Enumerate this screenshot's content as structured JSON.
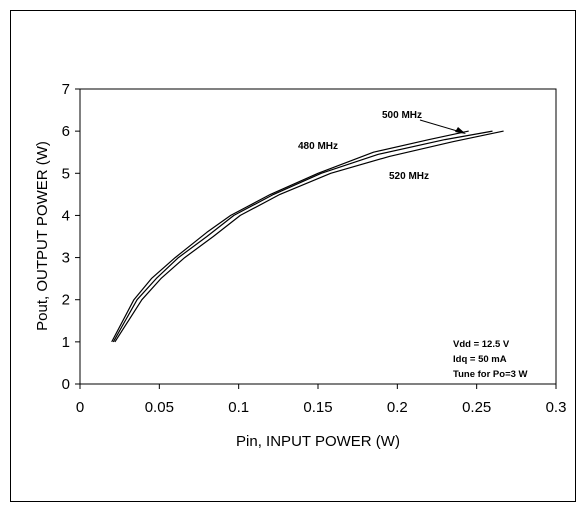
{
  "chart_data": {
    "type": "line",
    "title": "",
    "xlabel": "Pin, INPUT POWER (W)",
    "ylabel": "Pout, OUTPUT POWER (W)",
    "xlim": [
      0,
      0.3
    ],
    "ylim": [
      0,
      7
    ],
    "x_ticks": [
      "0",
      "0.05",
      "0.1",
      "0.15",
      "0.2",
      "0.25",
      "0.3"
    ],
    "y_ticks": [
      "0",
      "1",
      "2",
      "3",
      "4",
      "5",
      "6",
      "7"
    ],
    "grid": false,
    "series": [
      {
        "name": "480 MHz",
        "points": [
          [
            0.02,
            1.0
          ],
          [
            0.034,
            2.0
          ],
          [
            0.045,
            2.5
          ],
          [
            0.06,
            3.0
          ],
          [
            0.08,
            3.6
          ],
          [
            0.095,
            4.0
          ],
          [
            0.12,
            4.5
          ],
          [
            0.15,
            5.0
          ],
          [
            0.185,
            5.5
          ],
          [
            0.22,
            5.8
          ],
          [
            0.245,
            6.0
          ]
        ]
      },
      {
        "name": "500 MHz",
        "points": [
          [
            0.021,
            1.0
          ],
          [
            0.036,
            2.0
          ],
          [
            0.048,
            2.5
          ],
          [
            0.062,
            3.0
          ],
          [
            0.08,
            3.5
          ],
          [
            0.097,
            4.0
          ],
          [
            0.122,
            4.5
          ],
          [
            0.152,
            5.0
          ],
          [
            0.188,
            5.45
          ],
          [
            0.23,
            5.8
          ],
          [
            0.26,
            6.0
          ]
        ]
      },
      {
        "name": "520 MHz",
        "points": [
          [
            0.022,
            1.0
          ],
          [
            0.039,
            2.0
          ],
          [
            0.051,
            2.5
          ],
          [
            0.066,
            3.0
          ],
          [
            0.084,
            3.5
          ],
          [
            0.101,
            4.0
          ],
          [
            0.126,
            4.5
          ],
          [
            0.158,
            5.0
          ],
          [
            0.195,
            5.4
          ],
          [
            0.235,
            5.75
          ],
          [
            0.267,
            6.0
          ]
        ]
      }
    ],
    "annotations": {
      "label_480": "480 MHz",
      "label_500": "500 MHz",
      "label_520": "520 MHz",
      "conditions": [
        "Vdd = 12.5 V",
        "Idq = 50 mA",
        "Tune for Po=3 W"
      ]
    }
  }
}
